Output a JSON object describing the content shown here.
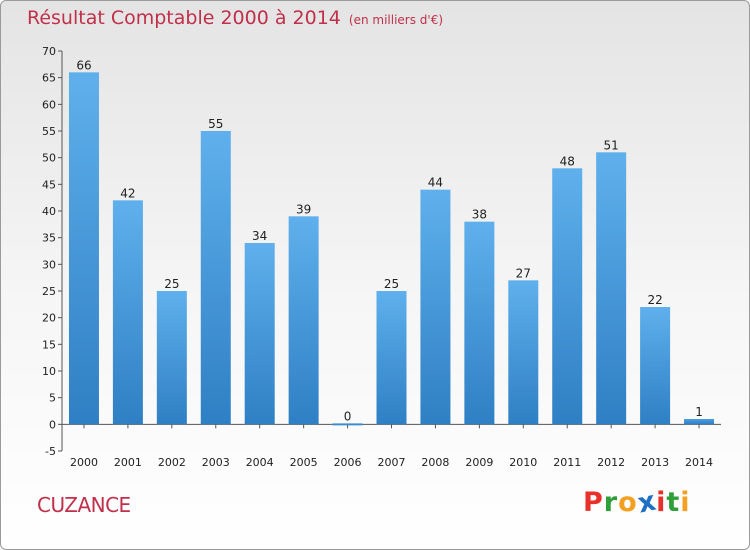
{
  "chart_data": {
    "type": "bar",
    "title": "Résultat Comptable 2000 à 2014",
    "subtitle": "(en milliers d'€)",
    "xlabel": "",
    "ylabel": "",
    "categories": [
      "2000",
      "2001",
      "2002",
      "2003",
      "2004",
      "2005",
      "2006",
      "2007",
      "2008",
      "2009",
      "2010",
      "2011",
      "2012",
      "2013",
      "2014"
    ],
    "values": [
      66,
      42,
      25,
      55,
      34,
      39,
      0,
      25,
      44,
      38,
      27,
      48,
      51,
      22,
      1
    ],
    "ylim": [
      -5,
      70
    ],
    "yticks": [
      -5,
      0,
      5,
      10,
      15,
      20,
      25,
      30,
      35,
      40,
      45,
      50,
      55,
      60,
      65,
      70
    ],
    "grid": false,
    "bar_color": "#3d92d9"
  },
  "footer": {
    "town": "CUZANCE",
    "logo_letters": [
      "P",
      "r",
      "o",
      "x",
      "i",
      "t",
      "i"
    ],
    "logo_colors": [
      "#e8312a",
      "#2f9f3a",
      "#f4a020",
      "#1f6fc5",
      "#e8312a",
      "#2f9f3a",
      "#f4a020"
    ]
  }
}
